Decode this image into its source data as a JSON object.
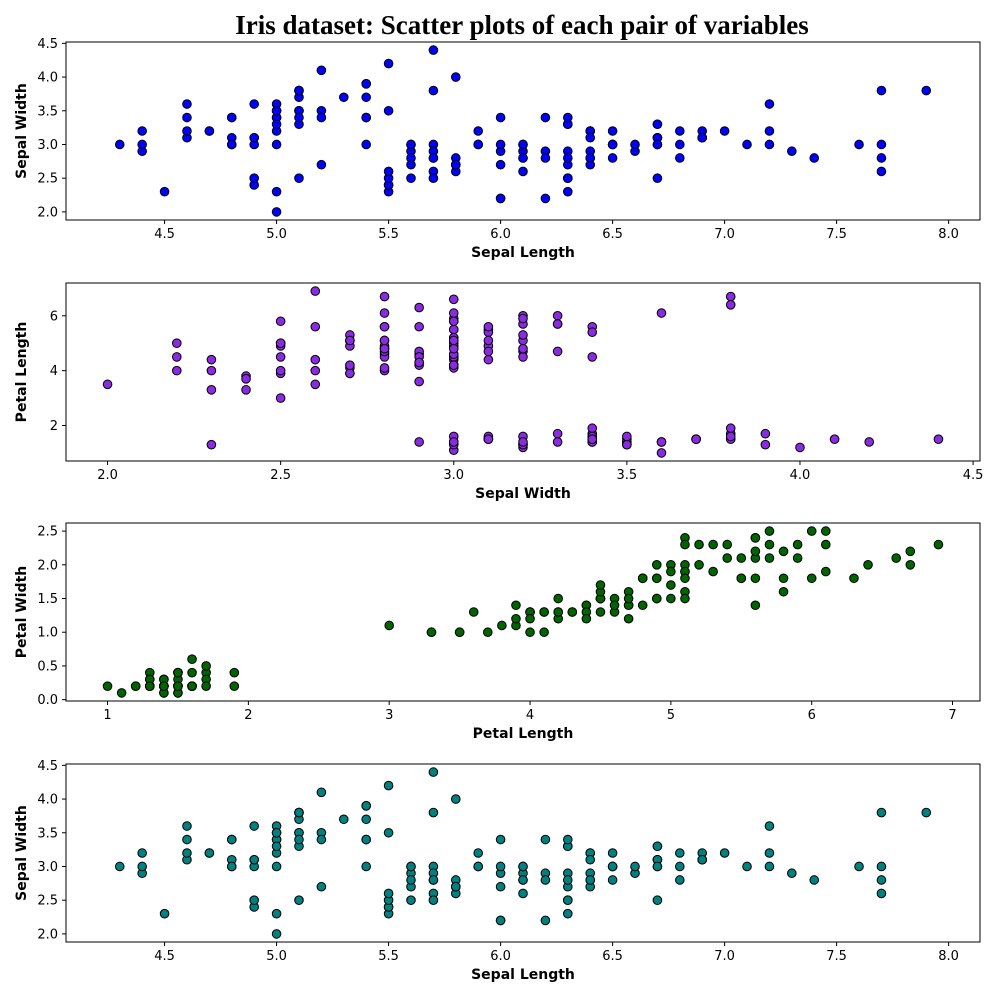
{
  "title": "Iris dataset: Scatter plots of each pair of variables",
  "chart_data": [
    {
      "type": "scatter",
      "xlabel": "Sepal Length",
      "ylabel": "Sepal Width",
      "xlim": [
        4.06,
        8.14
      ],
      "ylim": [
        1.88,
        4.52
      ],
      "xticks": [
        "4.5",
        "5.0",
        "5.5",
        "6.0",
        "6.5",
        "7.0",
        "7.5",
        "8.0"
      ],
      "yticks": [
        "2.0",
        "2.5",
        "3.0",
        "3.5",
        "4.0",
        "4.5"
      ],
      "color": "#0000ff",
      "x": [
        5.1,
        4.9,
        4.7,
        4.6,
        5.0,
        5.4,
        4.6,
        5.0,
        4.4,
        4.9,
        5.4,
        4.8,
        4.8,
        4.3,
        5.8,
        5.7,
        5.4,
        5.1,
        5.7,
        5.1,
        5.4,
        5.1,
        4.6,
        5.1,
        4.8,
        5.0,
        5.0,
        5.2,
        5.2,
        4.7,
        4.8,
        5.4,
        5.2,
        5.5,
        4.9,
        5.0,
        5.5,
        4.9,
        4.4,
        5.1,
        5.0,
        4.5,
        4.4,
        5.0,
        5.1,
        4.8,
        5.1,
        4.6,
        5.3,
        5.0,
        7.0,
        6.4,
        6.9,
        5.5,
        6.5,
        5.7,
        6.3,
        4.9,
        6.6,
        5.2,
        5.0,
        5.9,
        6.0,
        6.1,
        5.6,
        6.7,
        5.6,
        5.8,
        6.2,
        5.6,
        5.9,
        6.1,
        6.3,
        6.1,
        6.4,
        6.6,
        6.8,
        6.7,
        6.0,
        5.7,
        5.5,
        5.5,
        5.8,
        6.0,
        5.4,
        6.0,
        6.7,
        6.3,
        5.6,
        5.5,
        5.5,
        6.1,
        5.8,
        5.0,
        5.6,
        5.7,
        5.7,
        6.2,
        5.1,
        5.7,
        6.3,
        5.8,
        7.1,
        6.3,
        6.5,
        7.6,
        4.9,
        7.3,
        6.7,
        7.2,
        6.5,
        6.4,
        6.8,
        5.7,
        5.8,
        6.4,
        6.5,
        7.7,
        7.7,
        6.0,
        6.9,
        5.6,
        7.7,
        6.3,
        6.7,
        7.2,
        6.2,
        6.1,
        6.4,
        7.2,
        7.4,
        7.9,
        6.4,
        6.3,
        6.1,
        7.7,
        6.3,
        6.4,
        6.0,
        6.9,
        6.7,
        6.9,
        5.8,
        6.8,
        6.7,
        6.7,
        6.3,
        6.5,
        6.2,
        5.9
      ],
      "y": [
        3.5,
        3.0,
        3.2,
        3.1,
        3.6,
        3.9,
        3.4,
        3.4,
        2.9,
        3.1,
        3.7,
        3.4,
        3.0,
        3.0,
        4.0,
        4.4,
        3.9,
        3.5,
        3.8,
        3.8,
        3.4,
        3.7,
        3.6,
        3.3,
        3.4,
        3.0,
        3.4,
        3.5,
        3.4,
        3.2,
        3.1,
        3.4,
        4.1,
        4.2,
        3.1,
        3.2,
        3.5,
        3.6,
        3.0,
        3.4,
        3.5,
        2.3,
        3.2,
        3.5,
        3.8,
        3.0,
        3.8,
        3.2,
        3.7,
        3.3,
        3.2,
        3.2,
        3.1,
        2.3,
        2.8,
        2.8,
        3.3,
        2.4,
        2.9,
        2.7,
        2.0,
        3.0,
        2.2,
        2.9,
        2.9,
        3.1,
        3.0,
        2.7,
        2.2,
        2.5,
        3.2,
        2.8,
        2.5,
        2.8,
        2.9,
        3.0,
        2.8,
        3.0,
        2.9,
        2.6,
        2.4,
        2.4,
        2.7,
        2.7,
        3.0,
        3.4,
        3.1,
        2.3,
        3.0,
        2.5,
        2.6,
        3.0,
        2.6,
        2.3,
        2.7,
        3.0,
        2.9,
        2.9,
        2.5,
        2.8,
        3.3,
        2.7,
        3.0,
        2.9,
        3.0,
        3.0,
        2.5,
        2.9,
        2.5,
        3.6,
        3.2,
        2.7,
        3.0,
        2.5,
        2.8,
        3.2,
        3.0,
        3.8,
        2.6,
        2.2,
        3.2,
        2.8,
        2.8,
        2.7,
        3.3,
        3.2,
        2.8,
        3.0,
        2.8,
        3.0,
        2.8,
        3.8,
        2.8,
        2.8,
        2.6,
        3.0,
        3.4,
        3.1,
        3.0,
        3.1,
        3.1,
        3.1,
        2.7,
        3.2,
        3.3,
        3.0,
        2.5,
        3.0,
        3.4,
        3.0
      ]
    },
    {
      "type": "scatter",
      "xlabel": "Sepal Width",
      "ylabel": "Petal Length",
      "xlim": [
        1.88,
        4.52
      ],
      "ylim": [
        0.705,
        7.195
      ],
      "xticks": [
        "2.0",
        "2.5",
        "3.0",
        "3.5",
        "4.0",
        "4.5"
      ],
      "yticks": [
        "2",
        "4",
        "6"
      ],
      "color": "#8a2be2",
      "x": [
        3.5,
        3.0,
        3.2,
        3.1,
        3.6,
        3.9,
        3.4,
        3.4,
        2.9,
        3.1,
        3.7,
        3.4,
        3.0,
        3.0,
        4.0,
        4.4,
        3.9,
        3.5,
        3.8,
        3.8,
        3.4,
        3.7,
        3.6,
        3.3,
        3.4,
        3.0,
        3.4,
        3.5,
        3.4,
        3.2,
        3.1,
        3.4,
        4.1,
        4.2,
        3.1,
        3.2,
        3.5,
        3.6,
        3.0,
        3.4,
        3.5,
        2.3,
        3.2,
        3.5,
        3.8,
        3.0,
        3.8,
        3.2,
        3.7,
        3.3,
        3.2,
        3.2,
        3.1,
        2.3,
        2.8,
        2.8,
        3.3,
        2.4,
        2.9,
        2.7,
        2.0,
        3.0,
        2.2,
        2.9,
        2.9,
        3.1,
        3.0,
        2.7,
        2.2,
        2.5,
        3.2,
        2.8,
        2.5,
        2.8,
        2.9,
        3.0,
        2.8,
        3.0,
        2.9,
        2.6,
        2.4,
        2.4,
        2.7,
        2.7,
        3.0,
        3.4,
        3.1,
        2.3,
        3.0,
        2.5,
        2.6,
        3.0,
        2.6,
        2.3,
        2.7,
        3.0,
        2.9,
        2.9,
        2.5,
        2.8,
        3.3,
        2.7,
        3.0,
        2.9,
        3.0,
        3.0,
        2.5,
        2.9,
        2.5,
        3.6,
        3.2,
        2.7,
        3.0,
        2.5,
        2.8,
        3.2,
        3.0,
        3.8,
        2.6,
        2.2,
        3.2,
        2.8,
        2.8,
        2.7,
        3.3,
        3.2,
        2.8,
        3.0,
        2.8,
        3.0,
        2.8,
        3.8,
        2.8,
        2.8,
        2.6,
        3.0,
        3.4,
        3.1,
        3.0,
        3.1,
        3.1,
        3.1,
        2.7,
        3.2,
        3.3,
        3.0,
        2.5,
        3.0,
        3.4,
        3.0
      ],
      "y": [
        1.4,
        1.4,
        1.3,
        1.5,
        1.4,
        1.7,
        1.4,
        1.5,
        1.4,
        1.5,
        1.5,
        1.6,
        1.4,
        1.1,
        1.2,
        1.5,
        1.3,
        1.4,
        1.7,
        1.5,
        1.7,
        1.5,
        1.0,
        1.7,
        1.9,
        1.6,
        1.6,
        1.5,
        1.4,
        1.6,
        1.6,
        1.5,
        1.5,
        1.4,
        1.5,
        1.2,
        1.3,
        1.4,
        1.3,
        1.5,
        1.3,
        1.3,
        1.3,
        1.6,
        1.9,
        1.4,
        1.6,
        1.4,
        1.5,
        1.4,
        4.7,
        4.5,
        4.9,
        4.0,
        4.6,
        4.5,
        4.7,
        3.3,
        4.6,
        3.9,
        3.5,
        4.2,
        4.0,
        4.7,
        3.6,
        4.4,
        4.5,
        4.1,
        4.5,
        3.9,
        4.8,
        4.0,
        4.9,
        4.7,
        4.3,
        4.4,
        4.8,
        5.0,
        4.5,
        3.5,
        3.8,
        3.7,
        3.9,
        5.1,
        4.5,
        4.5,
        4.7,
        4.4,
        4.1,
        4.0,
        4.4,
        4.6,
        4.0,
        3.3,
        4.2,
        4.2,
        4.2,
        4.3,
        3.0,
        4.1,
        6.0,
        5.1,
        5.9,
        5.6,
        5.8,
        6.6,
        4.5,
        6.3,
        5.8,
        6.1,
        5.1,
        5.3,
        5.5,
        5.0,
        5.1,
        5.3,
        5.5,
        6.7,
        6.9,
        5.0,
        5.7,
        4.9,
        6.7,
        4.9,
        5.7,
        6.0,
        4.8,
        4.9,
        5.6,
        5.8,
        6.1,
        6.4,
        5.6,
        5.1,
        5.6,
        6.1,
        5.6,
        5.5,
        4.8,
        5.4,
        5.6,
        5.1,
        5.1,
        5.9,
        5.7,
        5.2,
        5.0,
        5.2,
        5.4,
        5.1
      ]
    },
    {
      "type": "scatter",
      "xlabel": "Petal Length",
      "ylabel": "Petal Width",
      "xlim": [
        0.705,
        7.195
      ],
      "ylim": [
        -0.02,
        2.62
      ],
      "xticks": [
        "1",
        "2",
        "3",
        "4",
        "5",
        "6",
        "7"
      ],
      "yticks": [
        "0.0",
        "0.5",
        "1.0",
        "1.5",
        "2.0",
        "2.5"
      ],
      "color": "#006400",
      "x": [
        1.4,
        1.4,
        1.3,
        1.5,
        1.4,
        1.7,
        1.4,
        1.5,
        1.4,
        1.5,
        1.5,
        1.6,
        1.4,
        1.1,
        1.2,
        1.5,
        1.3,
        1.4,
        1.7,
        1.5,
        1.7,
        1.5,
        1.0,
        1.7,
        1.9,
        1.6,
        1.6,
        1.5,
        1.4,
        1.6,
        1.6,
        1.5,
        1.5,
        1.4,
        1.5,
        1.2,
        1.3,
        1.4,
        1.3,
        1.5,
        1.3,
        1.3,
        1.3,
        1.6,
        1.9,
        1.4,
        1.6,
        1.4,
        1.5,
        1.4,
        4.7,
        4.5,
        4.9,
        4.0,
        4.6,
        4.5,
        4.7,
        3.3,
        4.6,
        3.9,
        3.5,
        4.2,
        4.0,
        4.7,
        3.6,
        4.4,
        4.5,
        4.1,
        4.5,
        3.9,
        4.8,
        4.0,
        4.9,
        4.7,
        4.3,
        4.4,
        4.8,
        5.0,
        4.5,
        3.5,
        3.8,
        3.7,
        3.9,
        5.1,
        4.5,
        4.5,
        4.7,
        4.4,
        4.1,
        4.0,
        4.4,
        4.6,
        4.0,
        3.3,
        4.2,
        4.2,
        4.2,
        4.3,
        3.0,
        4.1,
        6.0,
        5.1,
        5.9,
        5.6,
        5.8,
        6.6,
        4.5,
        6.3,
        5.8,
        6.1,
        5.1,
        5.3,
        5.5,
        5.0,
        5.1,
        5.3,
        5.5,
        6.7,
        6.9,
        5.0,
        5.7,
        4.9,
        6.7,
        4.9,
        5.7,
        6.0,
        4.8,
        4.9,
        5.6,
        5.8,
        6.1,
        6.4,
        5.6,
        5.1,
        5.6,
        6.1,
        5.6,
        5.5,
        4.8,
        5.4,
        5.6,
        5.1,
        5.1,
        5.9,
        5.7,
        5.2,
        5.0,
        5.2,
        5.4,
        5.1
      ],
      "y": [
        0.2,
        0.2,
        0.2,
        0.2,
        0.2,
        0.4,
        0.3,
        0.2,
        0.2,
        0.1,
        0.2,
        0.2,
        0.1,
        0.1,
        0.2,
        0.4,
        0.4,
        0.3,
        0.3,
        0.3,
        0.2,
        0.4,
        0.2,
        0.5,
        0.2,
        0.2,
        0.4,
        0.2,
        0.2,
        0.2,
        0.2,
        0.4,
        0.1,
        0.2,
        0.2,
        0.2,
        0.2,
        0.1,
        0.2,
        0.2,
        0.3,
        0.3,
        0.2,
        0.6,
        0.4,
        0.3,
        0.2,
        0.2,
        0.2,
        0.2,
        1.4,
        1.5,
        1.5,
        1.3,
        1.5,
        1.3,
        1.6,
        1.0,
        1.3,
        1.4,
        1.0,
        1.5,
        1.0,
        1.4,
        1.3,
        1.4,
        1.5,
        1.0,
        1.5,
        1.1,
        1.8,
        1.3,
        1.5,
        1.2,
        1.3,
        1.4,
        1.4,
        1.7,
        1.5,
        1.0,
        1.1,
        1.0,
        1.2,
        1.6,
        1.5,
        1.6,
        1.5,
        1.3,
        1.3,
        1.3,
        1.2,
        1.4,
        1.2,
        1.0,
        1.3,
        1.2,
        1.3,
        1.3,
        1.1,
        1.3,
        2.5,
        1.9,
        2.1,
        1.8,
        2.2,
        2.1,
        1.7,
        1.8,
        1.8,
        2.5,
        2.0,
        1.9,
        2.1,
        2.0,
        2.4,
        2.3,
        1.8,
        2.2,
        2.3,
        1.5,
        2.3,
        2.0,
        2.0,
        1.8,
        2.1,
        1.8,
        1.8,
        1.8,
        2.1,
        1.6,
        1.9,
        2.0,
        2.2,
        1.5,
        1.4,
        2.3,
        2.4,
        1.8,
        1.8,
        2.1,
        2.4,
        2.3,
        1.9,
        2.3,
        2.5,
        2.3,
        1.9,
        2.0,
        2.3,
        1.8
      ]
    },
    {
      "type": "scatter",
      "xlabel": "Sepal Length",
      "ylabel": "Sepal Width",
      "xlim": [
        4.06,
        8.14
      ],
      "ylim": [
        1.88,
        4.52
      ],
      "xticks": [
        "4.5",
        "5.0",
        "5.5",
        "6.0",
        "6.5",
        "7.0",
        "7.5",
        "8.0"
      ],
      "yticks": [
        "2.0",
        "2.5",
        "3.0",
        "3.5",
        "4.0",
        "4.5"
      ],
      "color": "#008080",
      "x": [
        5.1,
        4.9,
        4.7,
        4.6,
        5.0,
        5.4,
        4.6,
        5.0,
        4.4,
        4.9,
        5.4,
        4.8,
        4.8,
        4.3,
        5.8,
        5.7,
        5.4,
        5.1,
        5.7,
        5.1,
        5.4,
        5.1,
        4.6,
        5.1,
        4.8,
        5.0,
        5.0,
        5.2,
        5.2,
        4.7,
        4.8,
        5.4,
        5.2,
        5.5,
        4.9,
        5.0,
        5.5,
        4.9,
        4.4,
        5.1,
        5.0,
        4.5,
        4.4,
        5.0,
        5.1,
        4.8,
        5.1,
        4.6,
        5.3,
        5.0,
        7.0,
        6.4,
        6.9,
        5.5,
        6.5,
        5.7,
        6.3,
        4.9,
        6.6,
        5.2,
        5.0,
        5.9,
        6.0,
        6.1,
        5.6,
        6.7,
        5.6,
        5.8,
        6.2,
        5.6,
        5.9,
        6.1,
        6.3,
        6.1,
        6.4,
        6.6,
        6.8,
        6.7,
        6.0,
        5.7,
        5.5,
        5.5,
        5.8,
        6.0,
        5.4,
        6.0,
        6.7,
        6.3,
        5.6,
        5.5,
        5.5,
        6.1,
        5.8,
        5.0,
        5.6,
        5.7,
        5.7,
        6.2,
        5.1,
        5.7,
        6.3,
        5.8,
        7.1,
        6.3,
        6.5,
        7.6,
        4.9,
        7.3,
        6.7,
        7.2,
        6.5,
        6.4,
        6.8,
        5.7,
        5.8,
        6.4,
        6.5,
        7.7,
        7.7,
        6.0,
        6.9,
        5.6,
        7.7,
        6.3,
        6.7,
        7.2,
        6.2,
        6.1,
        6.4,
        7.2,
        7.4,
        7.9,
        6.4,
        6.3,
        6.1,
        7.7,
        6.3,
        6.4,
        6.0,
        6.9,
        6.7,
        6.9,
        5.8,
        6.8,
        6.7,
        6.7,
        6.3,
        6.5,
        6.2,
        5.9
      ],
      "y": [
        3.5,
        3.0,
        3.2,
        3.1,
        3.6,
        3.9,
        3.4,
        3.4,
        2.9,
        3.1,
        3.7,
        3.4,
        3.0,
        3.0,
        4.0,
        4.4,
        3.9,
        3.5,
        3.8,
        3.8,
        3.4,
        3.7,
        3.6,
        3.3,
        3.4,
        3.0,
        3.4,
        3.5,
        3.4,
        3.2,
        3.1,
        3.4,
        4.1,
        4.2,
        3.1,
        3.2,
        3.5,
        3.6,
        3.0,
        3.4,
        3.5,
        2.3,
        3.2,
        3.5,
        3.8,
        3.0,
        3.8,
        3.2,
        3.7,
        3.3,
        3.2,
        3.2,
        3.1,
        2.3,
        2.8,
        2.8,
        3.3,
        2.4,
        2.9,
        2.7,
        2.0,
        3.0,
        2.2,
        2.9,
        2.9,
        3.1,
        3.0,
        2.7,
        2.2,
        2.5,
        3.2,
        2.8,
        2.5,
        2.8,
        2.9,
        3.0,
        2.8,
        3.0,
        2.9,
        2.6,
        2.4,
        2.4,
        2.7,
        2.7,
        3.0,
        3.4,
        3.1,
        2.3,
        3.0,
        2.5,
        2.6,
        3.0,
        2.6,
        2.3,
        2.7,
        3.0,
        2.9,
        2.9,
        2.5,
        2.8,
        3.3,
        2.7,
        3.0,
        2.9,
        3.0,
        3.0,
        2.5,
        2.9,
        2.5,
        3.6,
        3.2,
        2.7,
        3.0,
        2.5,
        2.8,
        3.2,
        3.0,
        3.8,
        2.6,
        2.2,
        3.2,
        2.8,
        2.8,
        2.7,
        3.3,
        3.2,
        2.8,
        3.0,
        2.8,
        3.0,
        2.8,
        3.8,
        2.8,
        2.8,
        2.6,
        3.0,
        3.4,
        3.1,
        3.0,
        3.1,
        3.1,
        3.1,
        2.7,
        3.2,
        3.3,
        3.0,
        2.5,
        3.0,
        3.4,
        3.0
      ]
    }
  ]
}
